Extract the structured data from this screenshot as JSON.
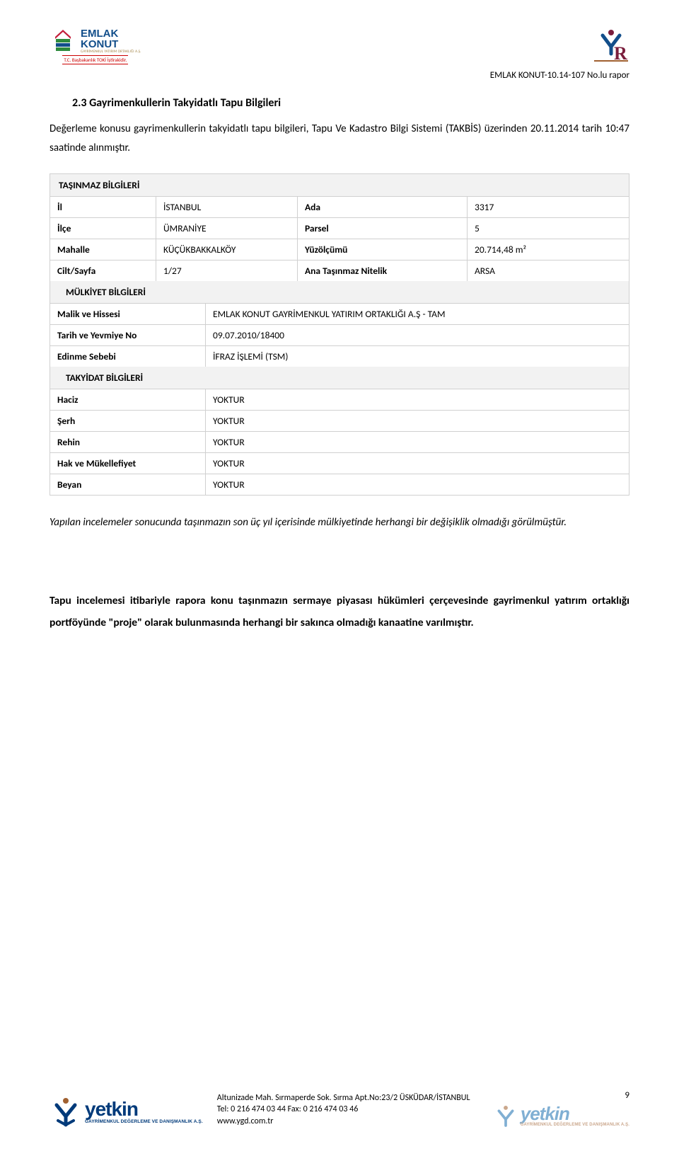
{
  "header": {
    "logo_left_line1": "EMLAK",
    "logo_left_line2": "KONUT",
    "logo_left_sub": "GAYRİMENKUL YATIRIM ORTAKLIĞI A.Ş.",
    "logo_left_toki": "T.C. Başbakanlık TOKİ İştirakidir.",
    "report_id": "EMLAK KONUT-10.14-107 No.lu rapor"
  },
  "section": {
    "title": "2.3 Gayrimenkullerin Takyidatlı Tapu Bilgileri",
    "intro": "Değerleme konusu gayrimenkullerin takyidatlı tapu bilgileri, Tapu Ve Kadastro Bilgi Sistemi (TAKBİS) üzerinden 20.11.2014 tarih 10:47 saatinde alınmıştır."
  },
  "table": {
    "group1": "TAŞINMAZ BİLGİLERİ",
    "rows4": [
      {
        "l1": "İl",
        "v1": "İSTANBUL",
        "l2": "Ada",
        "v2": "3317"
      },
      {
        "l1": "İlçe",
        "v1": "ÜMRANİYE",
        "l2": "Parsel",
        "v2": "5"
      },
      {
        "l1": "Mahalle",
        "v1": "KÜÇÜKBAKKALKÖY",
        "l2": "Yüzölçümü",
        "v2": "20.714,48 m²"
      },
      {
        "l1": "Cilt/Sayfa",
        "v1": "1/27",
        "l2": "Ana Taşınmaz Nitelik",
        "v2": "ARSA"
      }
    ],
    "group2": "MÜLKİYET BİLGİLERİ",
    "rows2a": [
      {
        "l": "Malik ve Hissesi",
        "v": "EMLAK KONUT GAYRİMENKUL YATIRIM ORTAKLIĞI A.Ş - TAM"
      },
      {
        "l": "Tarih ve Yevmiye No",
        "v": "09.07.2010/18400"
      },
      {
        "l": "Edinme Sebebi",
        "v": "İFRAZ İŞLEMİ (TSM)"
      }
    ],
    "group3": "TAKYİDAT BİLGİLERİ",
    "rows2b": [
      {
        "l": "Haciz",
        "v": "YOKTUR"
      },
      {
        "l": "Şerh",
        "v": "YOKTUR"
      },
      {
        "l": "Rehin",
        "v": "YOKTUR"
      },
      {
        "l": "Hak ve Mükellefiyet",
        "v": "YOKTUR"
      },
      {
        "l": "Beyan",
        "v": "YOKTUR"
      }
    ]
  },
  "notes": {
    "italic": "Yapılan incelemeler sonucunda taşınmazın son üç yıl içerisinde mülkiyetinde herhangi bir değişiklik olmadığı görülmüştür.",
    "bold": "Tapu incelemesi itibariyle rapora konu taşınmazın sermaye piyasası hükümleri çerçevesinde gayrimenkul yatırım ortaklığı portföyünde \"proje\" olarak bulunmasında herhangi bir sakınca olmadığı kanaatine varılmıştır."
  },
  "footer": {
    "brand": "yetkin",
    "brand_sub": "GAYRİMENKUL DEĞERLEME VE DANIŞMANLIK A.Ş.",
    "address_line1": "Altunizade Mah. Sırmaperde Sok. Sırma Apt.No:23/2 ÜSKÜDAR/İSTANBUL",
    "address_line2": "Tel: 0 216 474 03 44 Fax: 0 216 474 03 46",
    "address_line3": "www.ygd.com.tr",
    "page_num": "9"
  },
  "colors": {
    "border": "#d0d0d0",
    "header_bg": "#f2f2f2",
    "brand_blue": "#003a7a",
    "logo_blue": "#124e8a",
    "logo_red": "#c41e3a",
    "logo_green": "#2e8b3d"
  }
}
